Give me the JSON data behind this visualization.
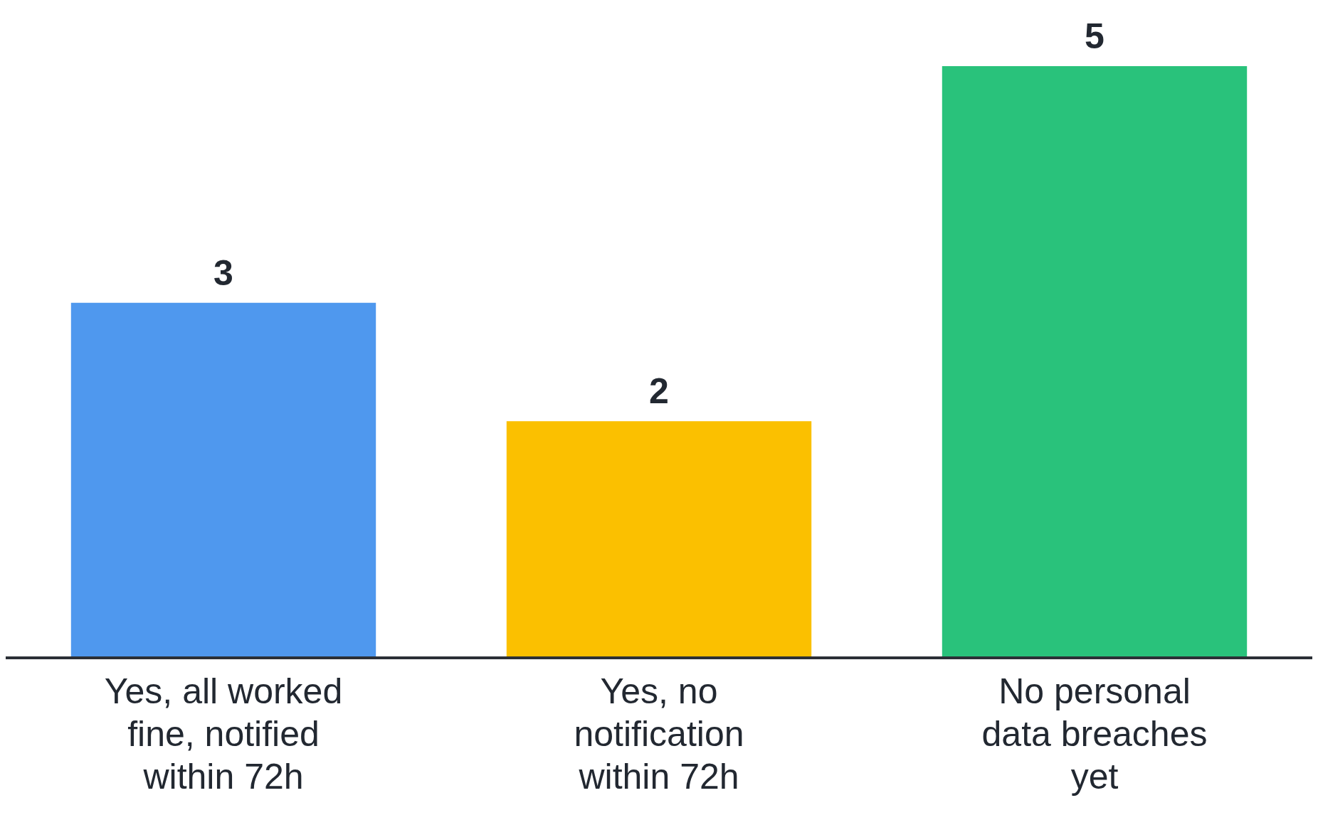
{
  "chart_data": {
    "type": "bar",
    "categories": [
      "Yes, all worked fine, notified within 72h",
      "Yes, no notification within 72h",
      "No personal data breaches yet"
    ],
    "values": [
      3,
      2,
      5
    ],
    "colors": [
      "#4f98ee",
      "#fbc000",
      "#29c27b"
    ],
    "data_labels": true,
    "grid": false,
    "legend": false,
    "tick_labels": "x"
  }
}
